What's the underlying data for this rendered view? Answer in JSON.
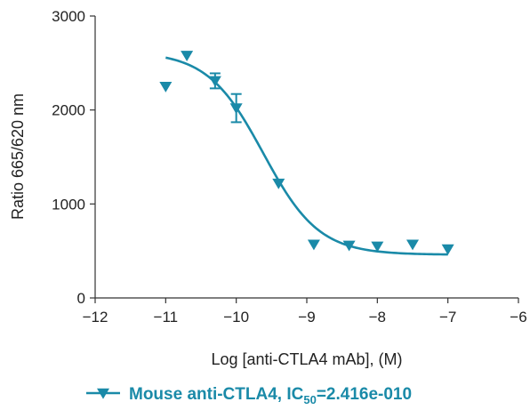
{
  "chart_data": {
    "type": "scatter",
    "xlabel": "Log [anti-CTLA4 mAb], (M)",
    "ylabel": "Ratio 665/620 nm",
    "xlim": [
      -12,
      -6
    ],
    "ylim": [
      0,
      3000
    ],
    "xticks": [
      -12,
      -11,
      -10,
      -9,
      -8,
      -7,
      -6
    ],
    "yticks": [
      0,
      1000,
      2000,
      3000
    ],
    "xtick_labels": [
      "−12",
      "−11",
      "−10",
      "−9",
      "−8",
      "−7",
      "−6"
    ],
    "ytick_labels": [
      "0",
      "1000",
      "2000",
      "3000"
    ],
    "grid": false,
    "legend_position": "bottom-center",
    "color": "#1a8aa8",
    "series": [
      {
        "legend_main": "Mouse anti-CTLA4, IC",
        "legend_sub": "50",
        "legend_tail": "=2.416e-010",
        "marker": "triangle-down",
        "points": [
          {
            "x": -11.0,
            "y": 2250
          },
          {
            "x": -10.7,
            "y": 2580
          },
          {
            "x": -10.3,
            "y": 2310,
            "err": 80
          },
          {
            "x": -10.0,
            "y": 2020,
            "err": 150
          },
          {
            "x": -9.4,
            "y": 1220
          },
          {
            "x": -8.9,
            "y": 570
          },
          {
            "x": -8.4,
            "y": 560
          },
          {
            "x": -8.0,
            "y": 550
          },
          {
            "x": -7.5,
            "y": 570
          },
          {
            "x": -7.0,
            "y": 520
          }
        ],
        "fit": {
          "model": "4PL",
          "top": 2620,
          "bottom": 460,
          "logIC50": -9.617,
          "hill": -1.1,
          "x_range": [
            -11.0,
            -7.0
          ]
        }
      }
    ]
  }
}
